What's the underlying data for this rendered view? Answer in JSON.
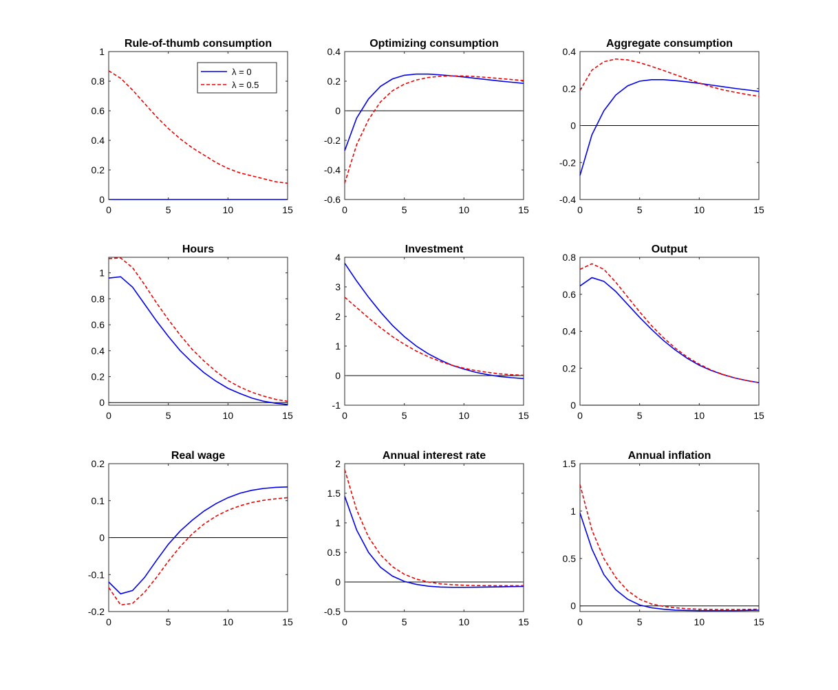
{
  "colors": {
    "lambda0": "#0000ee",
    "lambda05": "#ee0000",
    "zero_line": "#000000",
    "axis": "#262626"
  },
  "legend": {
    "entries": [
      {
        "label": "λ = 0",
        "series": "lambda0",
        "style": "solid"
      },
      {
        "label": "λ = 0.5",
        "series": "lambda05",
        "style": "dashed"
      }
    ]
  },
  "chart_data": [
    {
      "type": "line",
      "title": "Rule-of-thumb consumption",
      "x": [
        0,
        1,
        2,
        3,
        4,
        5,
        6,
        7,
        8,
        9,
        10,
        11,
        12,
        13,
        14,
        15
      ],
      "xlim": [
        0,
        15
      ],
      "xticks": [
        0,
        5,
        10,
        15
      ],
      "ylim": [
        0,
        1
      ],
      "yticks": [
        0,
        0.2,
        0.4,
        0.6,
        0.8,
        1
      ],
      "ytick_labels": [
        "0",
        "0.2",
        "0.4",
        "0.6",
        "0.8",
        "1"
      ],
      "zero_line": true,
      "legend_position": "top-right",
      "series": [
        {
          "name": "λ = 0",
          "key": "lambda0",
          "values": [
            0,
            0,
            0,
            0,
            0,
            0,
            0,
            0,
            0,
            0,
            0,
            0,
            0,
            0,
            0,
            0
          ]
        },
        {
          "name": "λ = 0.5",
          "key": "lambda05",
          "values": [
            0.87,
            0.82,
            0.74,
            0.65,
            0.56,
            0.48,
            0.41,
            0.35,
            0.3,
            0.25,
            0.21,
            0.18,
            0.16,
            0.14,
            0.12,
            0.11
          ]
        }
      ]
    },
    {
      "type": "line",
      "title": "Optimizing consumption",
      "x": [
        0,
        1,
        2,
        3,
        4,
        5,
        6,
        7,
        8,
        9,
        10,
        11,
        12,
        13,
        14,
        15
      ],
      "xlim": [
        0,
        15
      ],
      "xticks": [
        0,
        5,
        10,
        15
      ],
      "ylim": [
        -0.6,
        0.4
      ],
      "yticks": [
        -0.6,
        -0.4,
        -0.2,
        0,
        0.2,
        0.4
      ],
      "ytick_labels": [
        "-0.6",
        "-0.4",
        "-0.2",
        "0",
        "0.2",
        "0.4"
      ],
      "zero_line": true,
      "series": [
        {
          "name": "λ = 0",
          "key": "lambda0",
          "values": [
            -0.27,
            -0.05,
            0.08,
            0.165,
            0.215,
            0.24,
            0.248,
            0.248,
            0.243,
            0.236,
            0.228,
            0.219,
            0.21,
            0.201,
            0.193,
            0.185
          ]
        },
        {
          "name": "λ = 0.5",
          "key": "lambda05",
          "values": [
            -0.49,
            -0.23,
            -0.06,
            0.06,
            0.135,
            0.18,
            0.208,
            0.225,
            0.233,
            0.236,
            0.235,
            0.231,
            0.225,
            0.218,
            0.211,
            0.204
          ]
        }
      ]
    },
    {
      "type": "line",
      "title": "Aggregate consumption",
      "x": [
        0,
        1,
        2,
        3,
        4,
        5,
        6,
        7,
        8,
        9,
        10,
        11,
        12,
        13,
        14,
        15
      ],
      "xlim": [
        0,
        15
      ],
      "xticks": [
        0,
        5,
        10,
        15
      ],
      "ylim": [
        -0.4,
        0.4
      ],
      "yticks": [
        -0.4,
        -0.2,
        0,
        0.2,
        0.4
      ],
      "ytick_labels": [
        "-0.4",
        "-0.2",
        "0",
        "0.2",
        "0.4"
      ],
      "zero_line": true,
      "series": [
        {
          "name": "λ = 0",
          "key": "lambda0",
          "values": [
            -0.27,
            -0.05,
            0.08,
            0.165,
            0.215,
            0.24,
            0.248,
            0.248,
            0.243,
            0.236,
            0.228,
            0.219,
            0.21,
            0.201,
            0.193,
            0.185
          ]
        },
        {
          "name": "λ = 0.5",
          "key": "lambda05",
          "values": [
            0.19,
            0.3,
            0.345,
            0.36,
            0.355,
            0.34,
            0.32,
            0.298,
            0.275,
            0.252,
            0.23,
            0.21,
            0.193,
            0.18,
            0.168,
            0.158
          ]
        }
      ]
    },
    {
      "type": "line",
      "title": "Hours",
      "x": [
        0,
        1,
        2,
        3,
        4,
        5,
        6,
        7,
        8,
        9,
        10,
        11,
        12,
        13,
        14,
        15
      ],
      "xlim": [
        0,
        15
      ],
      "xticks": [
        0,
        5,
        10,
        15
      ],
      "ylim": [
        -0.02,
        1.12
      ],
      "yticks": [
        0,
        0.2,
        0.4,
        0.6,
        0.8,
        1
      ],
      "ytick_labels": [
        "0",
        "0.2",
        "0.4",
        "0.6",
        "0.8",
        "1"
      ],
      "zero_line": true,
      "series": [
        {
          "name": "λ = 0",
          "key": "lambda0",
          "values": [
            0.96,
            0.97,
            0.89,
            0.76,
            0.63,
            0.51,
            0.4,
            0.31,
            0.23,
            0.165,
            0.11,
            0.07,
            0.035,
            0.01,
            -0.005,
            -0.015
          ]
        },
        {
          "name": "λ = 0.5",
          "key": "lambda05",
          "values": [
            1.11,
            1.115,
            1.04,
            0.91,
            0.77,
            0.64,
            0.52,
            0.41,
            0.32,
            0.24,
            0.17,
            0.12,
            0.08,
            0.05,
            0.025,
            0.01
          ]
        }
      ]
    },
    {
      "type": "line",
      "title": "Investment",
      "x": [
        0,
        1,
        2,
        3,
        4,
        5,
        6,
        7,
        8,
        9,
        10,
        11,
        12,
        13,
        14,
        15
      ],
      "xlim": [
        0,
        15
      ],
      "xticks": [
        0,
        5,
        10,
        15
      ],
      "ylim": [
        -1,
        4
      ],
      "yticks": [
        -1,
        0,
        1,
        2,
        3,
        4
      ],
      "ytick_labels": [
        "-1",
        "0",
        "1",
        "2",
        "3",
        "4"
      ],
      "zero_line": true,
      "series": [
        {
          "name": "λ = 0",
          "key": "lambda0",
          "values": [
            3.8,
            3.2,
            2.65,
            2.15,
            1.7,
            1.32,
            1.0,
            0.74,
            0.53,
            0.35,
            0.22,
            0.11,
            0.03,
            -0.03,
            -0.07,
            -0.1
          ]
        },
        {
          "name": "λ = 0.5",
          "key": "lambda05",
          "values": [
            2.65,
            2.3,
            1.95,
            1.62,
            1.32,
            1.06,
            0.83,
            0.64,
            0.48,
            0.35,
            0.25,
            0.17,
            0.11,
            0.06,
            0.03,
            0.01
          ]
        }
      ]
    },
    {
      "type": "line",
      "title": "Output",
      "x": [
        0,
        1,
        2,
        3,
        4,
        5,
        6,
        7,
        8,
        9,
        10,
        11,
        12,
        13,
        14,
        15
      ],
      "xlim": [
        0,
        15
      ],
      "xticks": [
        0,
        5,
        10,
        15
      ],
      "ylim": [
        0,
        0.8
      ],
      "yticks": [
        0,
        0.2,
        0.4,
        0.6,
        0.8
      ],
      "ytick_labels": [
        "0",
        "0.2",
        "0.4",
        "0.6",
        "0.8"
      ],
      "zero_line": true,
      "series": [
        {
          "name": "λ = 0",
          "key": "lambda0",
          "values": [
            0.645,
            0.69,
            0.67,
            0.615,
            0.545,
            0.475,
            0.41,
            0.35,
            0.298,
            0.253,
            0.216,
            0.188,
            0.165,
            0.147,
            0.133,
            0.122
          ]
        },
        {
          "name": "λ = 0.5",
          "key": "lambda05",
          "values": [
            0.735,
            0.765,
            0.735,
            0.665,
            0.585,
            0.505,
            0.43,
            0.365,
            0.308,
            0.26,
            0.222,
            0.19,
            0.166,
            0.147,
            0.133,
            0.122
          ]
        }
      ]
    },
    {
      "type": "line",
      "title": "Real wage",
      "x": [
        0,
        1,
        2,
        3,
        4,
        5,
        6,
        7,
        8,
        9,
        10,
        11,
        12,
        13,
        14,
        15
      ],
      "xlim": [
        0,
        15
      ],
      "xticks": [
        0,
        5,
        10,
        15
      ],
      "ylim": [
        -0.2,
        0.2
      ],
      "yticks": [
        -0.2,
        -0.1,
        0,
        0.1,
        0.2
      ],
      "ytick_labels": [
        "-0.2",
        "-0.1",
        "0",
        "0.1",
        "0.2"
      ],
      "zero_line": true,
      "series": [
        {
          "name": "λ = 0",
          "key": "lambda0",
          "values": [
            -0.12,
            -0.152,
            -0.143,
            -0.108,
            -0.062,
            -0.018,
            0.018,
            0.047,
            0.072,
            0.092,
            0.108,
            0.12,
            0.128,
            0.133,
            0.136,
            0.137
          ]
        },
        {
          "name": "λ = 0.5",
          "key": "lambda05",
          "values": [
            -0.135,
            -0.182,
            -0.178,
            -0.148,
            -0.108,
            -0.064,
            -0.024,
            0.01,
            0.037,
            0.058,
            0.074,
            0.086,
            0.095,
            0.101,
            0.105,
            0.108
          ]
        }
      ]
    },
    {
      "type": "line",
      "title": "Annual interest rate",
      "x": [
        0,
        1,
        2,
        3,
        4,
        5,
        6,
        7,
        8,
        9,
        10,
        11,
        12,
        13,
        14,
        15
      ],
      "xlim": [
        0,
        15
      ],
      "xticks": [
        0,
        5,
        10,
        15
      ],
      "ylim": [
        -0.5,
        2
      ],
      "yticks": [
        -0.5,
        0,
        0.5,
        1,
        1.5,
        2
      ],
      "ytick_labels": [
        "-0.5",
        "0",
        "0.5",
        "1",
        "1.5",
        "2"
      ],
      "zero_line": true,
      "series": [
        {
          "name": "λ = 0",
          "key": "lambda0",
          "values": [
            1.45,
            0.88,
            0.5,
            0.25,
            0.1,
            0.01,
            -0.04,
            -0.07,
            -0.085,
            -0.09,
            -0.09,
            -0.088,
            -0.085,
            -0.082,
            -0.078,
            -0.075
          ]
        },
        {
          "name": "λ = 0.5",
          "key": "lambda05",
          "values": [
            1.9,
            1.22,
            0.76,
            0.46,
            0.26,
            0.13,
            0.05,
            0.0,
            -0.03,
            -0.045,
            -0.055,
            -0.06,
            -0.062,
            -0.063,
            -0.063,
            -0.062
          ]
        }
      ]
    },
    {
      "type": "line",
      "title": "Annual inflation",
      "x": [
        0,
        1,
        2,
        3,
        4,
        5,
        6,
        7,
        8,
        9,
        10,
        11,
        12,
        13,
        14,
        15
      ],
      "xlim": [
        0,
        15
      ],
      "xticks": [
        0,
        5,
        10,
        15
      ],
      "ylim": [
        -0.06,
        1.5
      ],
      "yticks": [
        0,
        0.5,
        1,
        1.5
      ],
      "ytick_labels": [
        "0",
        "0.5",
        "1",
        "1.5"
      ],
      "zero_line": true,
      "series": [
        {
          "name": "λ = 0",
          "key": "lambda0",
          "values": [
            0.98,
            0.6,
            0.33,
            0.17,
            0.07,
            0.01,
            -0.02,
            -0.035,
            -0.045,
            -0.048,
            -0.05,
            -0.05,
            -0.05,
            -0.05,
            -0.048,
            -0.045
          ]
        },
        {
          "name": "λ = 0.5",
          "key": "lambda05",
          "values": [
            1.28,
            0.8,
            0.5,
            0.3,
            0.16,
            0.07,
            0.02,
            -0.005,
            -0.02,
            -0.03,
            -0.035,
            -0.037,
            -0.038,
            -0.038,
            -0.037,
            -0.035
          ]
        }
      ]
    }
  ]
}
